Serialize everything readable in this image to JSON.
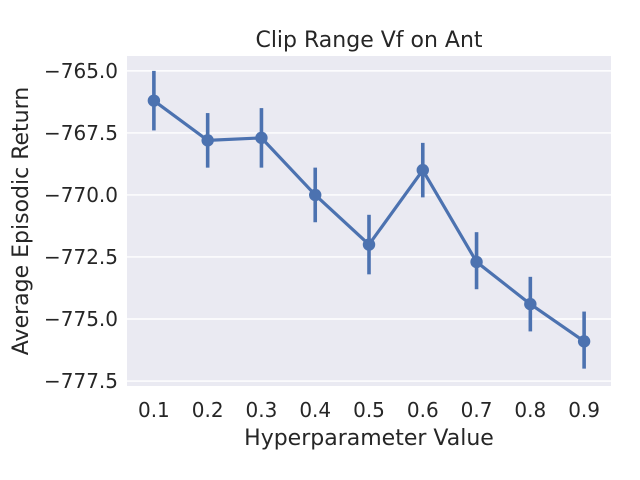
{
  "chart_data": {
    "type": "line",
    "title": "Clip Range Vf on Ant",
    "xlabel": "Hyperparameter Value",
    "ylabel": "Average Episodic Return",
    "categories": [
      "0.1",
      "0.2",
      "0.3",
      "0.4",
      "0.5",
      "0.6",
      "0.7",
      "0.8",
      "0.9"
    ],
    "series": [
      {
        "name": "Clip Range Vf",
        "values": [
          -766.2,
          -767.8,
          -767.7,
          -770.0,
          -772.0,
          -769.0,
          -772.7,
          -774.4,
          -775.9
        ],
        "ci_low": [
          -767.4,
          -768.9,
          -768.9,
          -771.1,
          -773.2,
          -770.1,
          -773.8,
          -775.5,
          -777.0
        ],
        "ci_high": [
          -765.0,
          -766.7,
          -766.5,
          -768.9,
          -770.8,
          -767.9,
          -771.5,
          -773.3,
          -774.7
        ]
      }
    ],
    "yticks": [
      -765.0,
      -767.5,
      -770.0,
      -772.5,
      -775.0,
      -777.5
    ],
    "ytick_labels": [
      "−765.0",
      "−767.5",
      "−770.0",
      "−772.5",
      "−775.0",
      "−777.5"
    ],
    "ylim": [
      -777.7,
      -764.4
    ],
    "grid": true,
    "colors": {
      "line": "#4c72b0",
      "background": "#eaeaf2",
      "grid": "#ffffff"
    }
  }
}
